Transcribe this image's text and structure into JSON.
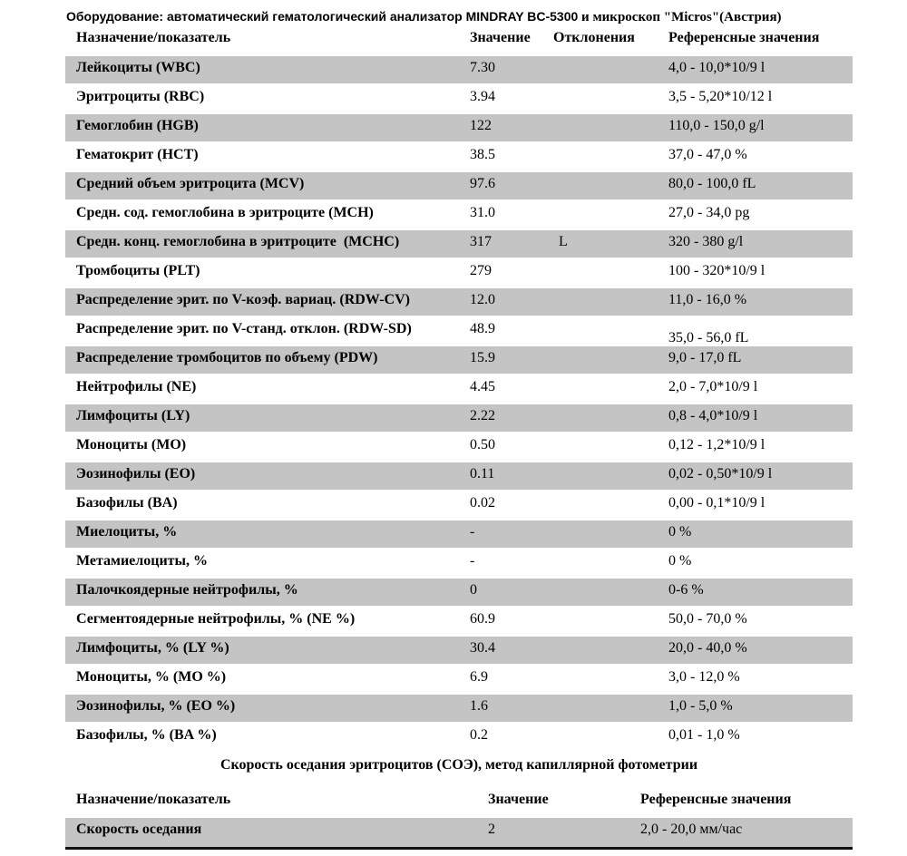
{
  "equipment_line": {
    "label_main": "Оборудование: автоматический гематологический анализатор MINDRAY BC-5300",
    "label_microscope": " и микроскоп \"Micros\"(Австрия)"
  },
  "colors": {
    "row_shaded": "#c4c4c4",
    "text": "#000000",
    "bottom_rule": "#111111"
  },
  "table1": {
    "headers": [
      "Назначение/показатель",
      "Значение",
      "Отклонения",
      "Референсные значения"
    ],
    "rows": [
      {
        "name": "Лейкоциты (WBC)",
        "value": "7.30",
        "deviation": "",
        "reference": "4,0 - 10,0*10/9 l",
        "shaded": true
      },
      {
        "name": "Эритроциты (RBC)",
        "value": "3.94",
        "deviation": "",
        "reference": "3,5 - 5,20*10/12 l",
        "shaded": false
      },
      {
        "name": "Гемоглобин (HGB)",
        "value": "122",
        "deviation": "",
        "reference": "110,0 - 150,0 g/l",
        "shaded": true
      },
      {
        "name": "Гематокрит (HCT)",
        "value": "38.5",
        "deviation": "",
        "reference": "37,0 - 47,0 %",
        "shaded": false
      },
      {
        "name": "Средний объем эритроцита (MCV)",
        "value": "97.6",
        "deviation": "",
        "reference": "80,0 - 100,0 fL",
        "shaded": true
      },
      {
        "name": "Средн. сод. гемоглобина в эритроците (MCH)",
        "value": "31.0",
        "deviation": "",
        "reference": "27,0 - 34,0 pg",
        "shaded": false
      },
      {
        "name": "Средн. конц. гемоглобина в эритроците (MCHC)",
        "value": "317",
        "deviation": "L",
        "reference": "320 - 380 g/l",
        "shaded": true
      },
      {
        "name": "Тромбоциты (PLT)",
        "value": "279",
        "deviation": "",
        "reference": "100 - 320*10/9 l",
        "shaded": false
      },
      {
        "name": "Распределение эрит. по V-коэф. вариац. (RDW-CV)",
        "value": "12.0",
        "deviation": "",
        "reference": "11,0 - 16,0 %",
        "shaded": true
      },
      {
        "name": "Распределение эрит. по V-станд. отклон. (RDW-SD)",
        "value": "48.9",
        "deviation": "",
        "reference": "35,0 - 56,0 fL",
        "shaded": false,
        "ref_low": true
      },
      {
        "name": "Распределение тромбоцитов по объему (PDW)",
        "value": "15.9",
        "deviation": "",
        "reference": "9,0 - 17,0 fL",
        "shaded": true
      },
      {
        "name": "Нейтрофилы (NE)",
        "value": "4.45",
        "deviation": "",
        "reference": "2,0 - 7,0*10/9 l",
        "shaded": false
      },
      {
        "name": "Лимфоциты (LY)",
        "value": "2.22",
        "deviation": "",
        "reference": "0,8 - 4,0*10/9 l",
        "shaded": true
      },
      {
        "name": "Моноциты (MO)",
        "value": "0.50",
        "deviation": "",
        "reference": "0,12 - 1,2*10/9 l",
        "shaded": false
      },
      {
        "name": "Эозинофилы (EO)",
        "value": "0.11",
        "deviation": "",
        "reference": "0,02 - 0,50*10/9 l",
        "shaded": true
      },
      {
        "name": "Базофилы (BA)",
        "value": "0.02",
        "deviation": "",
        "reference": "0,00 - 0,1*10/9 l",
        "shaded": false
      },
      {
        "name": "Миелоциты, %",
        "value": "-",
        "deviation": "",
        "reference": "0 %",
        "shaded": true
      },
      {
        "name": "Метамиелоциты, %",
        "value": "-",
        "deviation": "",
        "reference": "0 %",
        "shaded": false
      },
      {
        "name": "Палочкоядерные нейтрофилы, %",
        "value": "0",
        "deviation": "",
        "reference": "0-6 %",
        "shaded": true
      },
      {
        "name": "Сегментоядерные нейтрофилы, % (NE %)",
        "value": "60.9",
        "deviation": "",
        "reference": "50,0 - 70,0 %",
        "shaded": false
      },
      {
        "name": "Лимфоциты, % (LY %)",
        "value": "30.4",
        "deviation": "",
        "reference": "20,0 - 40,0 %",
        "shaded": true
      },
      {
        "name": "Моноциты, % (MO %)",
        "value": "6.9",
        "deviation": "",
        "reference": "3,0 - 12,0 %",
        "shaded": false
      },
      {
        "name": "Эозинофилы, % (EO %)",
        "value": "1.6",
        "deviation": "",
        "reference": "1,0 - 5,0 %",
        "shaded": true
      },
      {
        "name": "Базофилы, % (BA %)",
        "value": "0.2",
        "deviation": "",
        "reference": "0,01 - 1,0 %",
        "shaded": false
      }
    ]
  },
  "section2": {
    "title": "Скорость оседания эритроцитов (СОЭ), метод капиллярной фотометрии"
  },
  "table2": {
    "headers": [
      "Назначение/показатель",
      "Значение",
      "Референсные значения"
    ],
    "rows": [
      {
        "name": "Скорость оседания",
        "value": "2",
        "reference": "2,0 - 20,0 мм/час",
        "shaded": true
      }
    ]
  }
}
